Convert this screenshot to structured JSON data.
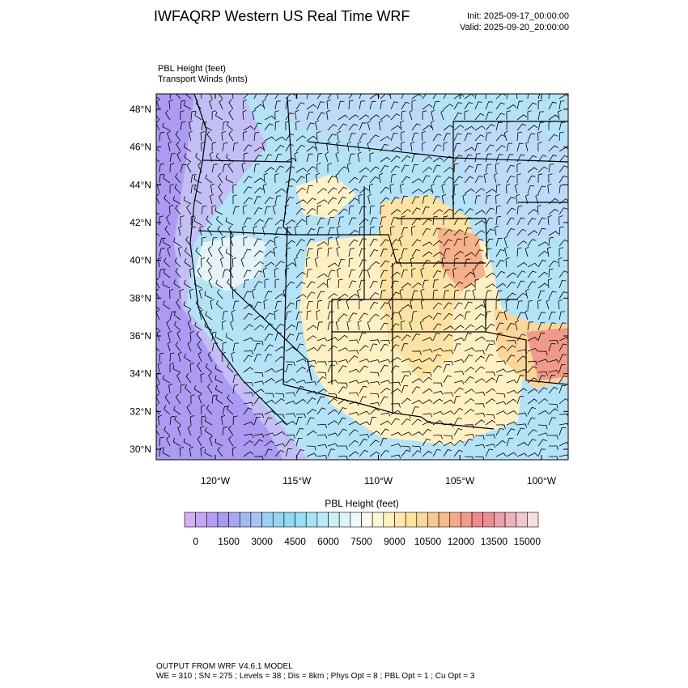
{
  "header": {
    "title": "IWFAQRP Western US Real Time WRF",
    "init": "Init: 2025-09-17_00:00:00",
    "valid": "Valid: 2025-09-20_20:00:00"
  },
  "fields": [
    "PBL Height   (feet)",
    "Transport Winds   (knts)"
  ],
  "map": {
    "lat_labels": [
      "30°N",
      "32°N",
      "34°N",
      "36°N",
      "38°N",
      "40°N",
      "42°N",
      "44°N",
      "46°N",
      "48°N"
    ],
    "lon_labels": [
      "120°W",
      "115°W",
      "110°W",
      "105°W",
      "100°W"
    ]
  },
  "colorbar": {
    "title": "PBL Height  (feet)",
    "labels": [
      "0",
      "1500",
      "3000",
      "4500",
      "6000",
      "7500",
      "9000",
      "10500",
      "12000",
      "13500",
      "15000"
    ],
    "colors": [
      "#d6b0f5",
      "#c6a6f6",
      "#b59cf4",
      "#a99af2",
      "#a6a8f0",
      "#a4b8f2",
      "#a8c6f4",
      "#9ccff4",
      "#92d5f5",
      "#8cdaf6",
      "#98def6",
      "#a9e3f7",
      "#bbe9f8",
      "#cdeff9",
      "#def4fa",
      "#eef9fb",
      "#fbfbf0",
      "#fff7d6",
      "#fff0c0",
      "#ffe9ad",
      "#fde2a0",
      "#fbd698",
      "#f9c892",
      "#f8ba8c",
      "#f6aa88",
      "#f39a88",
      "#ef8a8a",
      "#eb8c92",
      "#eaa0a8",
      "#edb3bb",
      "#f2c6cc",
      "#f8dde0"
    ]
  },
  "footer": [
    "OUTPUT FROM WRF V4.6.1 MODEL",
    "WE = 310 ; SN = 275 ; Levels = 38 ; Dis = 8km ; Phys Opt = 8 ; PBL Opt = 1 ; Cu Opt = 3"
  ]
}
